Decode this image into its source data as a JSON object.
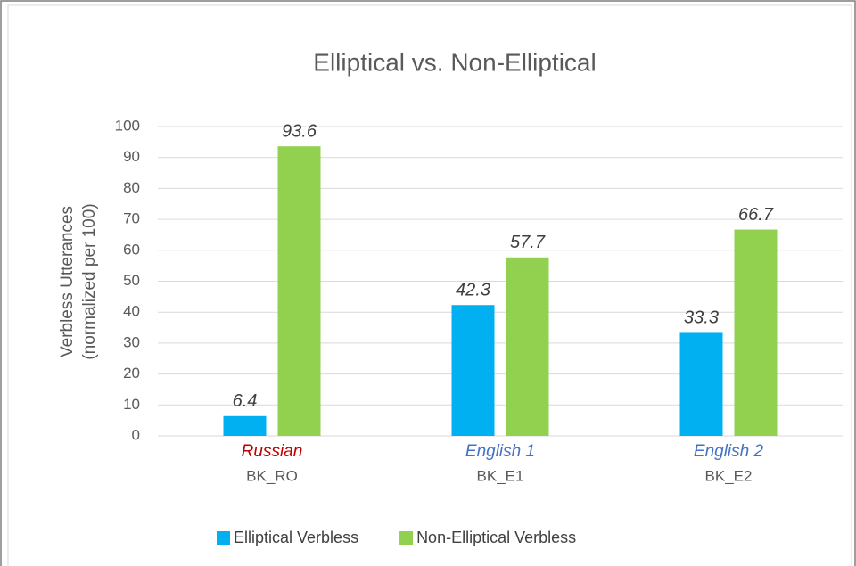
{
  "chart_data": {
    "type": "bar",
    "title": "Elliptical vs. Non-Elliptical",
    "ylabel": [
      "Verbless Utterances",
      "(normalized per 100)"
    ],
    "categories": [
      "BK_RO",
      "BK_E1",
      "BK_E2"
    ],
    "category_labels": [
      "Russian",
      "English 1",
      "English 2"
    ],
    "category_label_colors": [
      "#c00000",
      "#4472c4",
      "#4472c4"
    ],
    "series": [
      {
        "name": "Elliptical Verbless",
        "color": "#00b0f0",
        "values": [
          6.4,
          42.3,
          33.3
        ]
      },
      {
        "name": "Non-Elliptical Verbless",
        "color": "#92d050",
        "values": [
          93.6,
          57.7,
          66.7
        ]
      }
    ],
    "ylim": [
      0,
      100
    ],
    "yticks": [
      0,
      10,
      20,
      30,
      40,
      50,
      60,
      70,
      80,
      90,
      100
    ],
    "grid": true,
    "legend": "bottom"
  }
}
